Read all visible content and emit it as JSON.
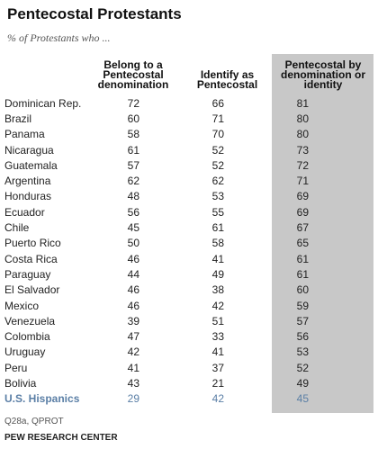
{
  "title": "Pentecostal Protestants",
  "subtitle": "% of Protestants who ...",
  "headers": {
    "col1": "Belong to a Pentecostal denomination",
    "col2": "Identify as Pentecostal",
    "col3": "Pentecostal by denomination or identity"
  },
  "source": "Q28a, QPROT",
  "credit": "PEW RESEARCH CENTER",
  "colors": {
    "shade": "#c8c8c8",
    "highlight_row": "#5b7fa6"
  },
  "chart_data": {
    "type": "table",
    "title": "Pentecostal Protestants",
    "columns": [
      "Belong to a Pentecostal denomination",
      "Identify as Pentecostal",
      "Pentecostal by denomination or identity"
    ],
    "rows": [
      {
        "country": "Dominican Rep.",
        "values": [
          72,
          66,
          81
        ]
      },
      {
        "country": "Brazil",
        "values": [
          60,
          71,
          80
        ]
      },
      {
        "country": "Panama",
        "values": [
          58,
          70,
          80
        ]
      },
      {
        "country": "Nicaragua",
        "values": [
          61,
          52,
          73
        ]
      },
      {
        "country": "Guatemala",
        "values": [
          57,
          52,
          72
        ]
      },
      {
        "country": "Argentina",
        "values": [
          62,
          62,
          71
        ]
      },
      {
        "country": "Honduras",
        "values": [
          48,
          53,
          69
        ]
      },
      {
        "country": "Ecuador",
        "values": [
          56,
          55,
          69
        ]
      },
      {
        "country": "Chile",
        "values": [
          45,
          61,
          67
        ]
      },
      {
        "country": "Puerto Rico",
        "values": [
          50,
          58,
          65
        ]
      },
      {
        "country": "Costa Rica",
        "values": [
          46,
          41,
          61
        ]
      },
      {
        "country": "Paraguay",
        "values": [
          44,
          49,
          61
        ]
      },
      {
        "country": "El Salvador",
        "values": [
          46,
          38,
          60
        ]
      },
      {
        "country": "Mexico",
        "values": [
          46,
          42,
          59
        ]
      },
      {
        "country": "Venezuela",
        "values": [
          39,
          51,
          57
        ]
      },
      {
        "country": "Colombia",
        "values": [
          47,
          33,
          56
        ]
      },
      {
        "country": "Uruguay",
        "values": [
          42,
          41,
          53
        ]
      },
      {
        "country": "Peru",
        "values": [
          41,
          37,
          52
        ]
      },
      {
        "country": "Bolivia",
        "values": [
          43,
          21,
          49
        ]
      },
      {
        "country": "U.S. Hispanics",
        "values": [
          29,
          42,
          45
        ],
        "highlight": true
      }
    ]
  }
}
